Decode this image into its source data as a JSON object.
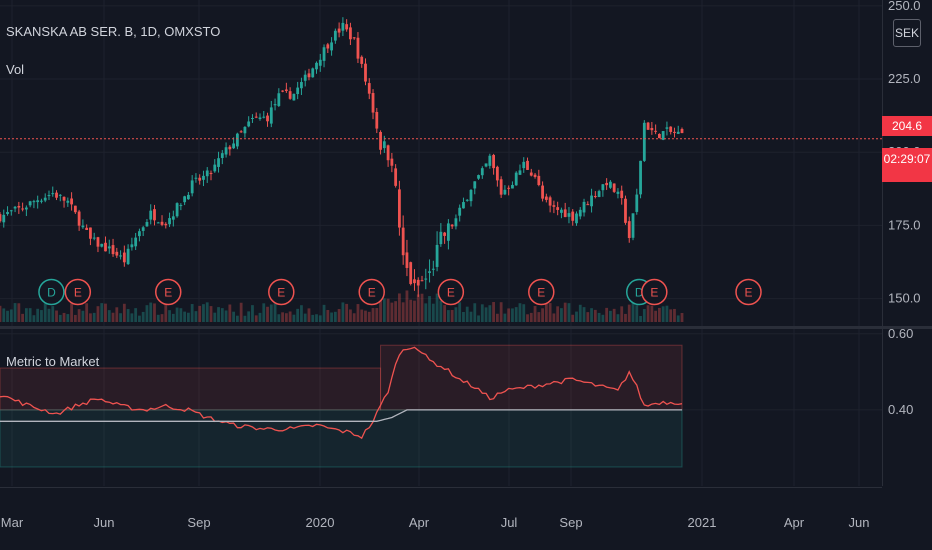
{
  "header": {
    "symbol": "SKANSKA AB SER. B, 1D, OMXSTO",
    "volume_label": "Vol",
    "currency_button": "SEK",
    "indicator_label": "Metric to Market"
  },
  "price_tags": {
    "last_price": "204.6",
    "countdown": "02:29:07"
  },
  "colors": {
    "up": "#26a69a",
    "down": "#ef5350",
    "background": "#131722",
    "grid": "#1e222d",
    "text": "#b2b5be"
  },
  "chart_data": [
    {
      "type": "candlestick",
      "title": "SKANSKA AB SER. B, 1D, OMXSTO",
      "yticks": [
        150.0,
        175.0,
        200.0,
        225.0,
        250.0
      ],
      "ytick_labels": [
        "150.0",
        "175.0",
        "200.0",
        "225.0",
        "250.0"
      ],
      "ylim": [
        142,
        252
      ],
      "last_value": 204.6,
      "xticks": [
        "Mar",
        "Jun",
        "Sep",
        "2020",
        "Apr",
        "Jul",
        "Sep",
        "2021",
        "Apr",
        "Jun"
      ],
      "price_path": [
        [
          0,
          178
        ],
        [
          6,
          181
        ],
        [
          10,
          184
        ],
        [
          14,
          186
        ],
        [
          18,
          183
        ],
        [
          24,
          170
        ],
        [
          30,
          166
        ],
        [
          33,
          163
        ],
        [
          36,
          171
        ],
        [
          40,
          179
        ],
        [
          44,
          176
        ],
        [
          48,
          183
        ],
        [
          51,
          189
        ],
        [
          56,
          193
        ],
        [
          59,
          199
        ],
        [
          63,
          205
        ],
        [
          67,
          211
        ],
        [
          71,
          212
        ],
        [
          74,
          219
        ],
        [
          78,
          220
        ],
        [
          81,
          225
        ],
        [
          85,
          233
        ],
        [
          88,
          239
        ],
        [
          91,
          243
        ],
        [
          94,
          238
        ],
        [
          98,
          220
        ],
        [
          101,
          203
        ],
        [
          104,
          198
        ],
        [
          107,
          163
        ],
        [
          110,
          153
        ],
        [
          114,
          158
        ],
        [
          117,
          170
        ],
        [
          121,
          177
        ],
        [
          125,
          188
        ],
        [
          128,
          193
        ],
        [
          130,
          198
        ],
        [
          133,
          186
        ],
        [
          136,
          190
        ],
        [
          139,
          196
        ],
        [
          142,
          192
        ],
        [
          144,
          184
        ],
        [
          146,
          181
        ],
        [
          149,
          180
        ],
        [
          152,
          178
        ],
        [
          155,
          182
        ],
        [
          158,
          186
        ],
        [
          161,
          190
        ],
        [
          163,
          187
        ],
        [
          165,
          183
        ],
        [
          167,
          171
        ],
        [
          169,
          185
        ],
        [
          171,
          210
        ],
        [
          174,
          206
        ],
        [
          177,
          207
        ],
        [
          181,
          206
        ]
      ],
      "events": [
        {
          "label": "D",
          "x": 11,
          "type": "dividend"
        },
        {
          "label": "E",
          "x": 18,
          "type": "earnings"
        },
        {
          "label": "E",
          "x": 42,
          "type": "earnings"
        },
        {
          "label": "E",
          "x": 72,
          "type": "earnings"
        },
        {
          "label": "E",
          "x": 96,
          "type": "earnings"
        },
        {
          "label": "E",
          "x": 117,
          "type": "earnings"
        },
        {
          "label": "E",
          "x": 141,
          "type": "earnings"
        },
        {
          "label": "D",
          "x": 167,
          "type": "dividend"
        },
        {
          "label": "E",
          "x": 171,
          "type": "earnings"
        },
        {
          "label": "E",
          "x": 196,
          "type": "earnings"
        }
      ]
    },
    {
      "type": "line",
      "title": "Metric to Market",
      "yticks": [
        0.4,
        0.6
      ],
      "ytick_labels": [
        "0.40",
        "0.60"
      ],
      "ylim": [
        0.2,
        0.61
      ],
      "bands": [
        {
          "x": [
            0,
            101
          ],
          "y": [
            0.4,
            0.51
          ],
          "color": "#ef5350"
        },
        {
          "x": [
            101,
            181
          ],
          "y": [
            0.4,
            0.57
          ],
          "color": "#ef5350"
        },
        {
          "x": [
            0,
            181
          ],
          "y": [
            0.25,
            0.4
          ],
          "color": "#26a69a"
        }
      ],
      "series": [
        {
          "color": "#ef5350",
          "points": [
            [
              0,
              0.44
            ],
            [
              8,
              0.41
            ],
            [
              15,
              0.39
            ],
            [
              20,
              0.41
            ],
            [
              26,
              0.43
            ],
            [
              32,
              0.41
            ],
            [
              38,
              0.4
            ],
            [
              44,
              0.41
            ],
            [
              50,
              0.4
            ],
            [
              55,
              0.38
            ],
            [
              62,
              0.36
            ],
            [
              70,
              0.35
            ],
            [
              78,
              0.35
            ],
            [
              84,
              0.36
            ],
            [
              88,
              0.35
            ],
            [
              93,
              0.34
            ],
            [
              96,
              0.33
            ],
            [
              99,
              0.37
            ],
            [
              103,
              0.45
            ],
            [
              106,
              0.55
            ],
            [
              110,
              0.57
            ],
            [
              114,
              0.53
            ],
            [
              118,
              0.51
            ],
            [
              122,
              0.48
            ],
            [
              126,
              0.46
            ],
            [
              130,
              0.43
            ],
            [
              134,
              0.45
            ],
            [
              140,
              0.46
            ],
            [
              146,
              0.47
            ],
            [
              152,
              0.48
            ],
            [
              156,
              0.47
            ],
            [
              160,
              0.46
            ],
            [
              164,
              0.45
            ],
            [
              167,
              0.5
            ],
            [
              169,
              0.46
            ],
            [
              171,
              0.41
            ],
            [
              175,
              0.42
            ],
            [
              181,
              0.42
            ]
          ]
        },
        {
          "color": "#b2b5be",
          "points": [
            [
              0,
              0.37
            ],
            [
              100,
              0.37
            ],
            [
              104,
              0.38
            ],
            [
              108,
              0.4
            ],
            [
              111,
              0.4
            ],
            [
              181,
              0.4
            ]
          ]
        }
      ]
    }
  ]
}
